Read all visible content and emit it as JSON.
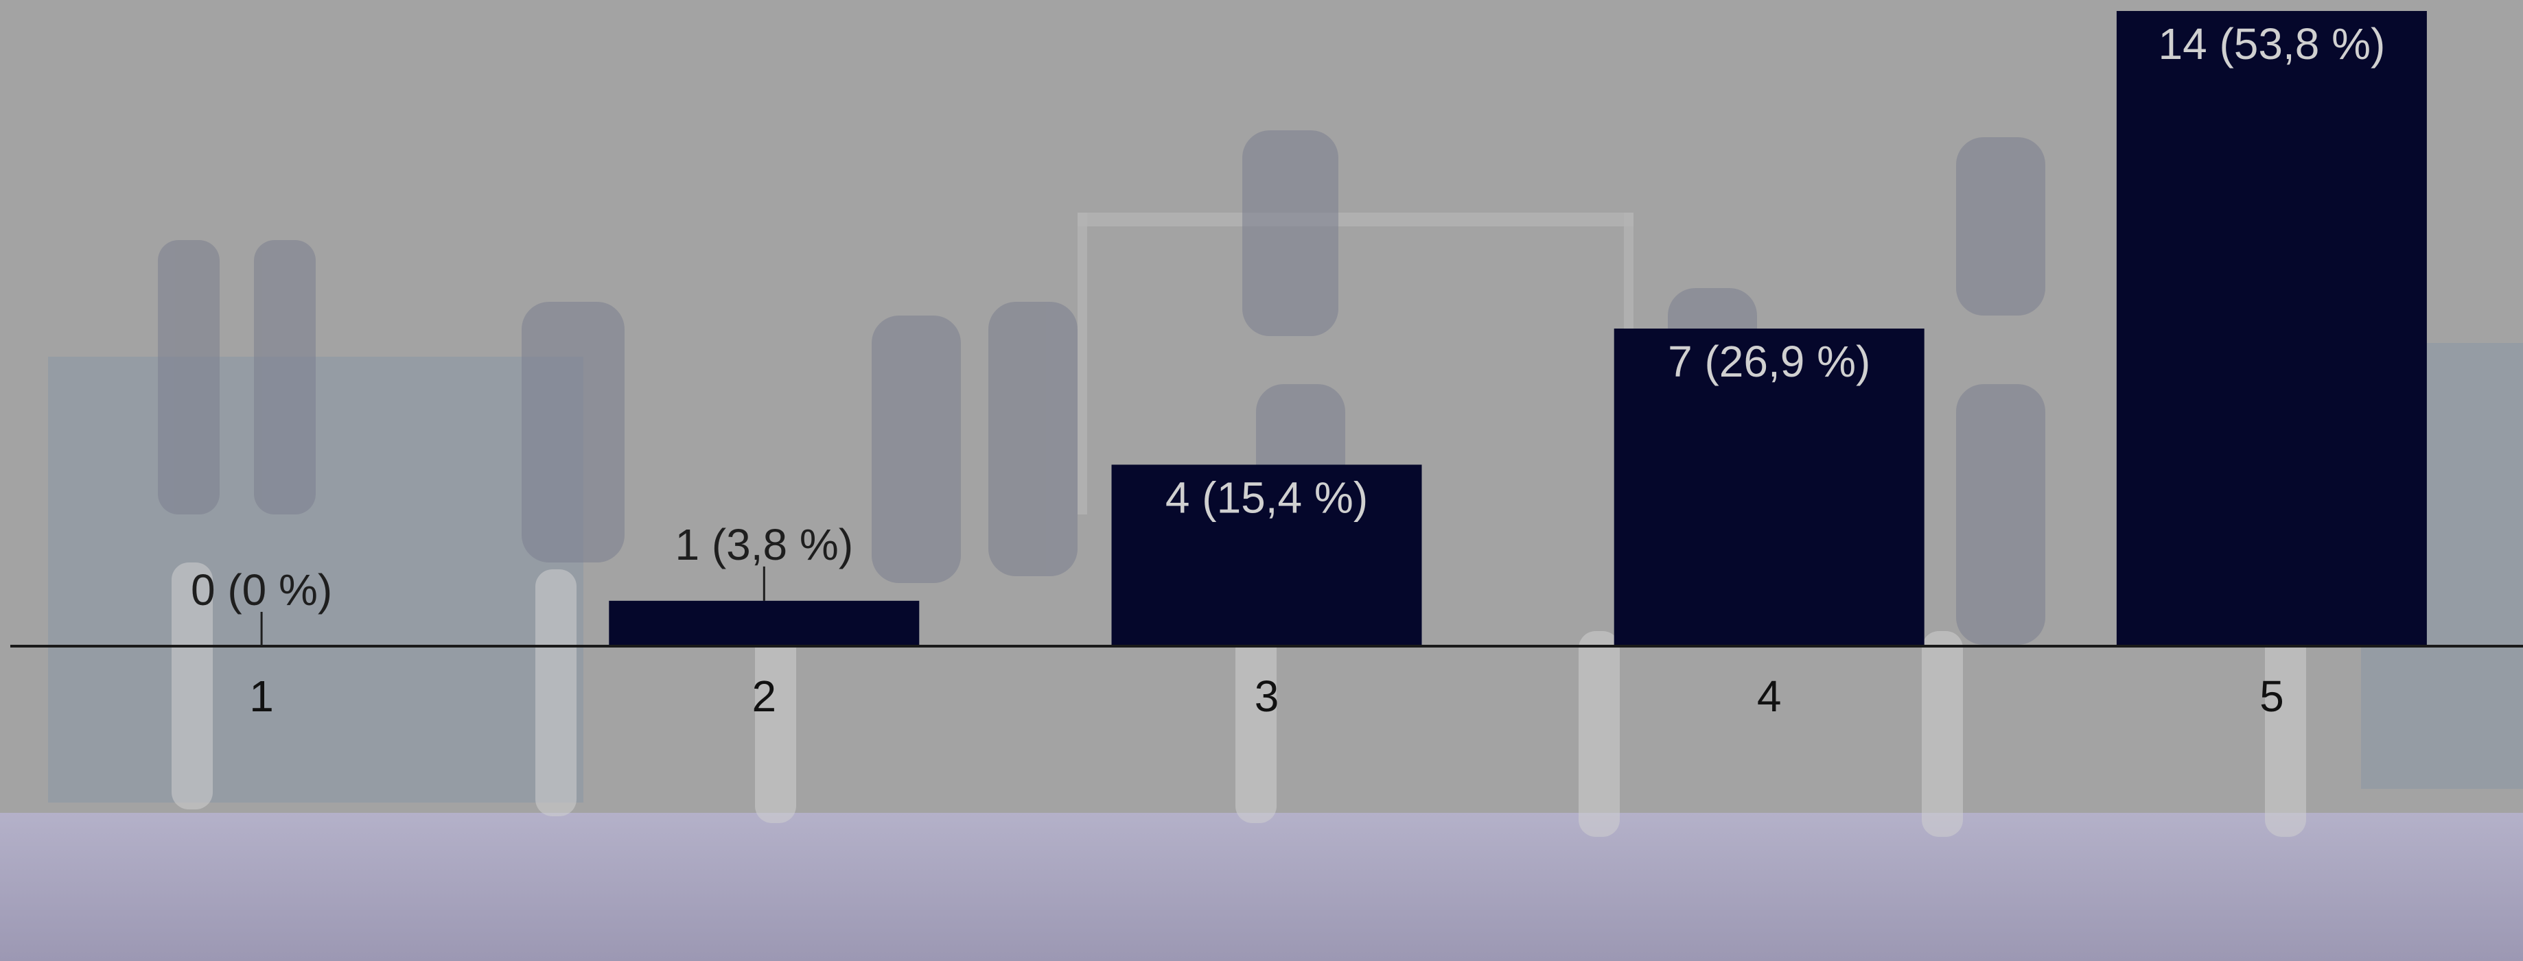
{
  "chart_data": {
    "type": "bar",
    "categories": [
      "1",
      "2",
      "3",
      "4",
      "5"
    ],
    "values": [
      0,
      1,
      4,
      7,
      14
    ],
    "data_labels": [
      "0 (0 %)",
      "1 (3,8 %)",
      "4 (15,4 %)",
      "7 (26,9 %)",
      "14 (53,8 %)"
    ],
    "title": "",
    "xlabel": "",
    "ylabel": "",
    "ylim": [
      0,
      14
    ],
    "grid": false,
    "legend": "none",
    "colors": {
      "bar": "#05072b",
      "axis": "#1a1a1a",
      "label_inside": "#d0d0d0",
      "label_outside": "#1e1e1e"
    }
  },
  "background": {
    "description_icon": "cheerleader-photo-background",
    "overlay": "#a3a3a3"
  }
}
